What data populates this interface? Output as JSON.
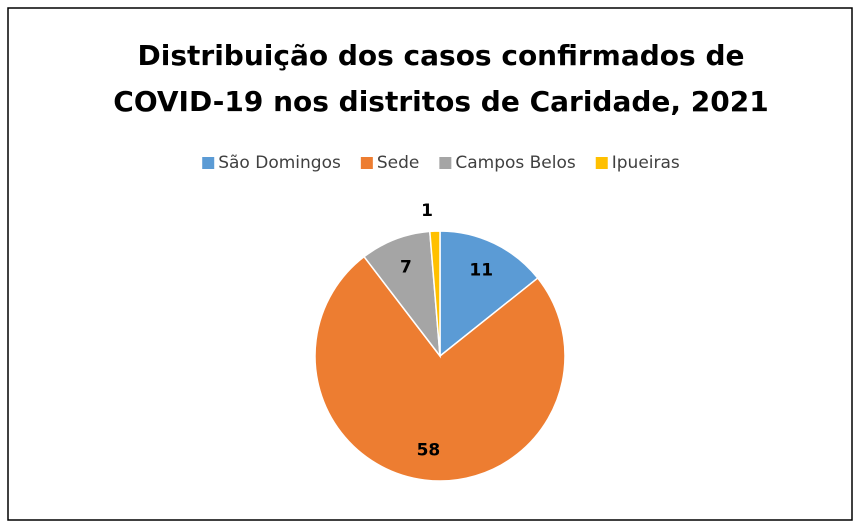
{
  "chart_data": {
    "type": "pie",
    "title": [
      "Distribuição dos casos confirmados de",
      "COVID-19  nos distritos de Caridade, 2021"
    ],
    "categories": [
      "São Domingos",
      "Sede",
      "Campos Belos",
      "Ipueiras"
    ],
    "values": [
      11,
      58,
      7,
      1
    ],
    "colors": [
      "#5b9bd5",
      "#ed7d31",
      "#a5a5a5",
      "#ffc000"
    ],
    "legend": "top"
  }
}
